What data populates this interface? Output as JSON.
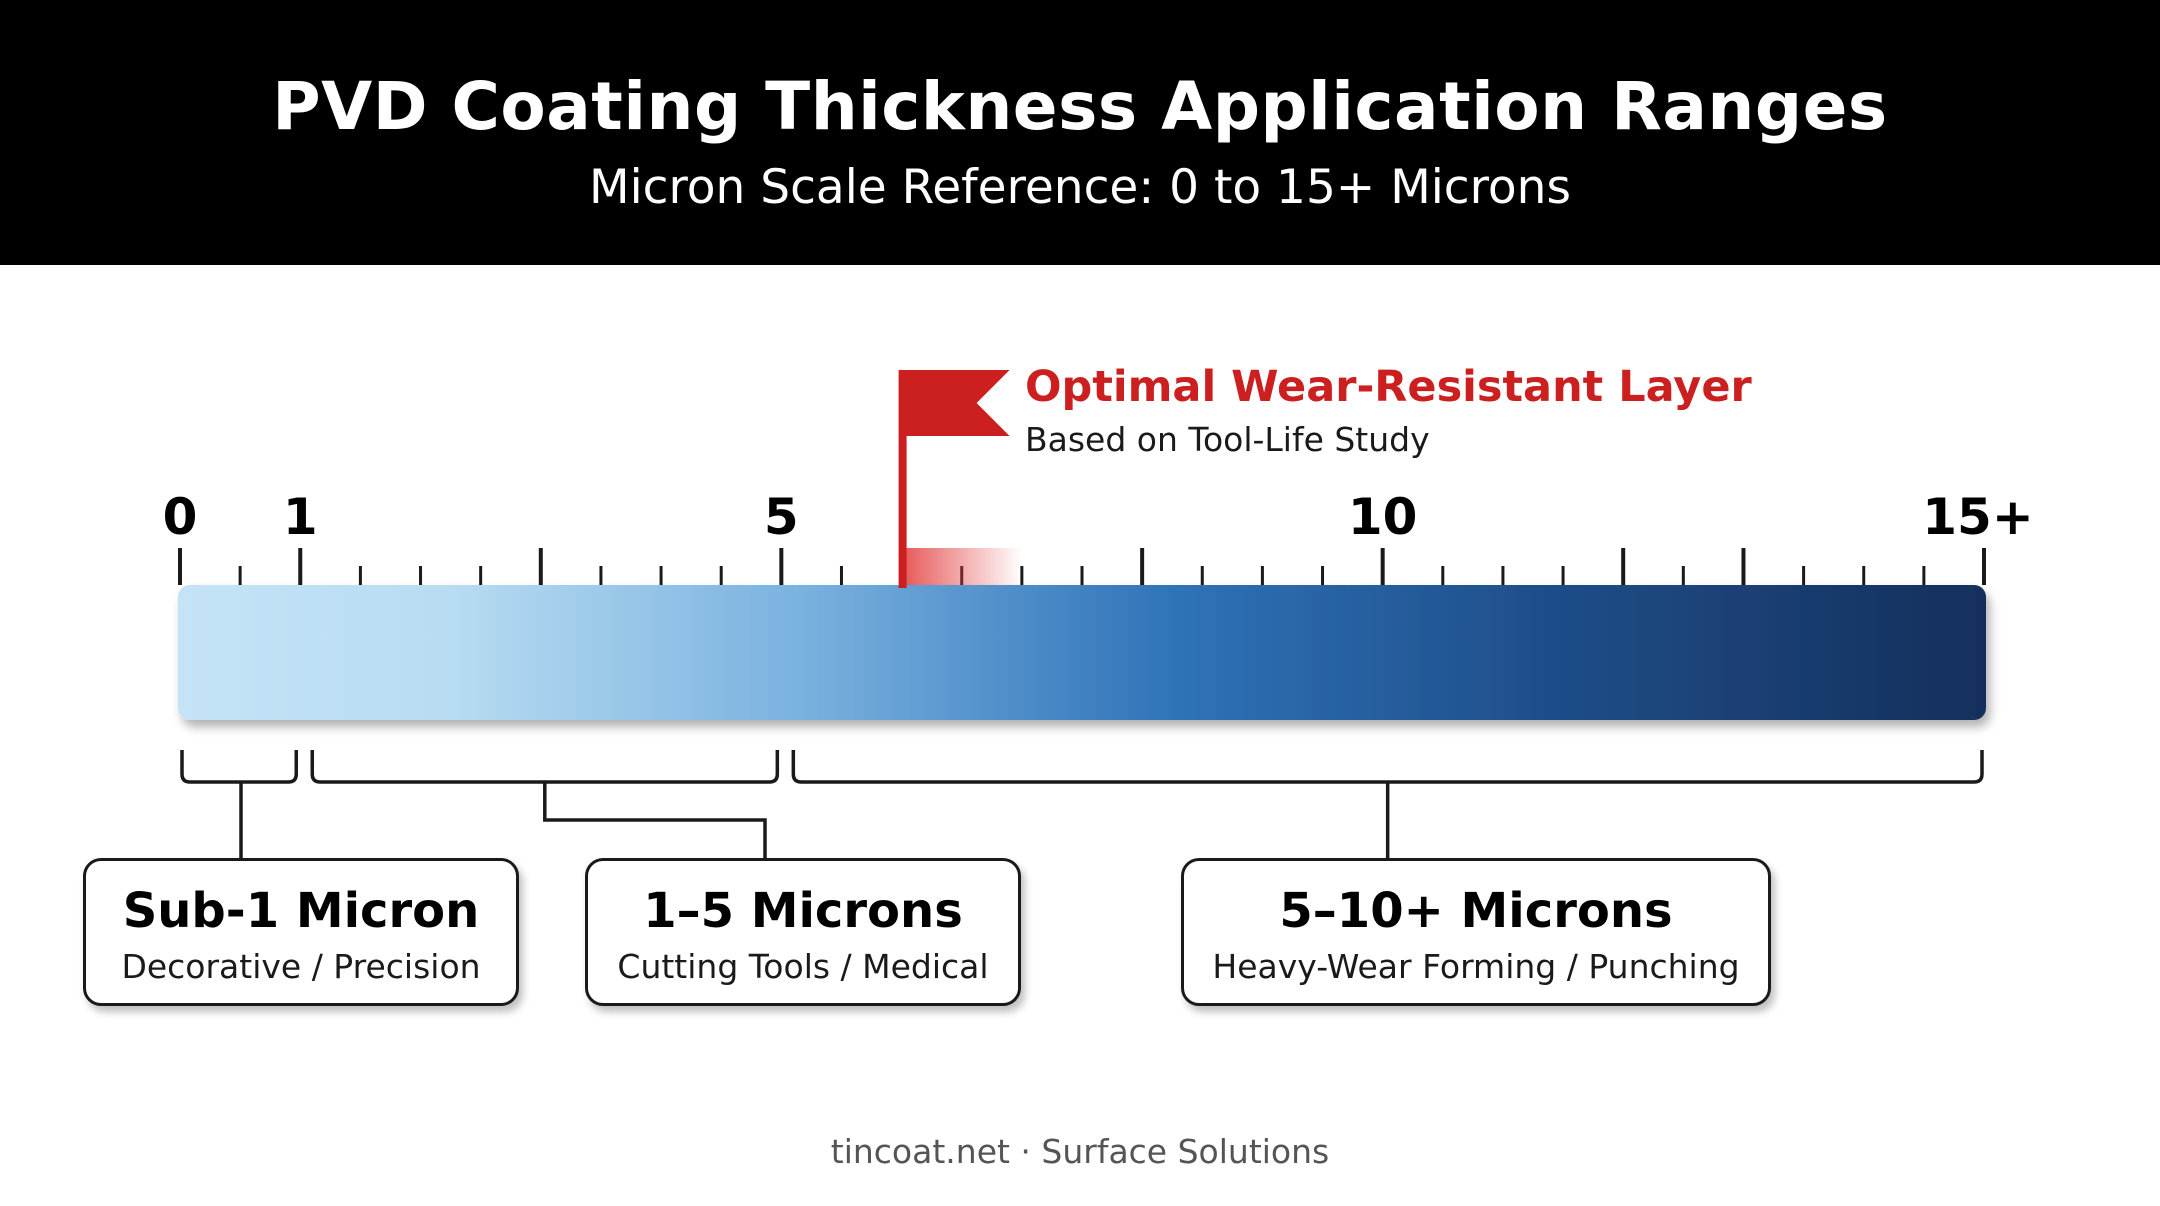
{
  "header": {
    "title": "PVD Coating Thickness Application Ranges",
    "subtitle": "Micron Scale Reference: 0 to 15+ Microns"
  },
  "scale": {
    "min": 0,
    "max": 15,
    "labels": [
      {
        "value": 0,
        "text": "0"
      },
      {
        "value": 1,
        "text": "1"
      },
      {
        "value": 5,
        "text": "5"
      },
      {
        "value": 10,
        "text": "10"
      },
      {
        "value": 15,
        "text": "15+"
      }
    ],
    "major_tick_values": [
      0,
      1,
      3,
      5,
      8,
      10,
      12,
      13,
      15
    ],
    "minor_tick_step": 0.5,
    "gradient_colors": [
      "#c4e3f6",
      "#8cc0e8",
      "#2f73b8",
      "#1f4f8a",
      "#152f5c"
    ]
  },
  "callout": {
    "title": "Optimal Wear-Resistant Layer",
    "subtitle": "Based on Tool-Life Study",
    "flag_value": 6,
    "highlight_range": [
      6,
      7
    ],
    "color": "#cc1f1f"
  },
  "ranges": [
    {
      "start": 0,
      "end": 1,
      "title": "Sub-1 Micron",
      "description": "Decorative / Precision"
    },
    {
      "start": 1,
      "end": 5,
      "title": "1–5 Microns",
      "description": "Cutting Tools / Medical"
    },
    {
      "start": 5,
      "end": 15,
      "title": "5–10+ Microns",
      "description": "Heavy-Wear Forming / Punching"
    }
  ],
  "footer": "tincoat.net · Surface Solutions"
}
